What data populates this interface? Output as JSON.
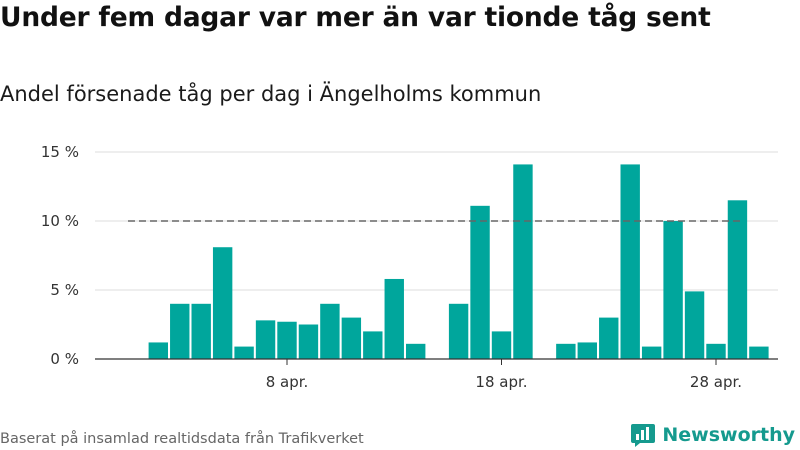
{
  "header": {
    "title": "Under fem dagar var mer än var tionde tåg sent",
    "subtitle": "Andel försenade tåg per dag i Ängelholms kommun"
  },
  "footer": {
    "source": "Baserat på insamlad realtidsdata från Trafikverket",
    "brand": "Newsworthy"
  },
  "colors": {
    "bar": "#00a69c",
    "reference_line": "#666666",
    "grid": "#dddddd",
    "brand": "#159a8e"
  },
  "chart_data": {
    "type": "bar",
    "x_unit": "day of April",
    "x": [
      2,
      3,
      4,
      5,
      6,
      7,
      8,
      9,
      10,
      11,
      12,
      13,
      14,
      16,
      17,
      18,
      19,
      21,
      22,
      23,
      24,
      25,
      26,
      27,
      28,
      29,
      30
    ],
    "values": [
      1.2,
      4.0,
      4.0,
      8.1,
      0.9,
      2.8,
      2.7,
      2.5,
      4.0,
      3.0,
      2.0,
      5.8,
      1.1,
      4.0,
      11.1,
      2.0,
      14.1,
      1.1,
      1.2,
      3.0,
      14.1,
      0.9,
      10.0,
      4.9,
      1.1,
      11.5,
      0.9
    ],
    "ylim": [
      0,
      15
    ],
    "yticks": [
      0,
      5,
      10,
      15
    ],
    "ytick_labels": [
      "0 %",
      "5 %",
      "10 %",
      "15 %"
    ],
    "xticks": [
      8,
      18,
      28
    ],
    "xtick_labels": [
      "8 apr.",
      "18 apr.",
      "28 apr."
    ],
    "reference_line": {
      "value": 10,
      "style": "dashed"
    },
    "grid": "horizontal",
    "legend": "none"
  }
}
